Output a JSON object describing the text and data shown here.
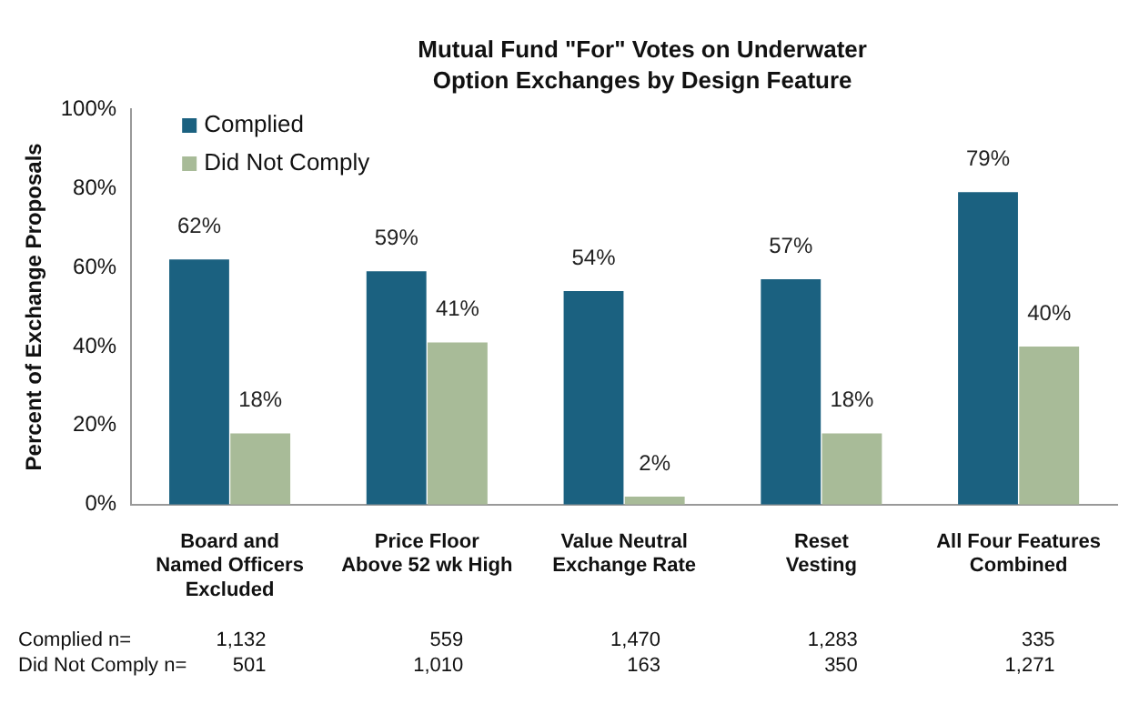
{
  "chart_data": {
    "type": "bar",
    "title": "Mutual Fund \"For\" Votes on Underwater\nOption Exchanges by Design Feature",
    "ylabel": "Percent of Exchange Proposals",
    "categories": [
      "Board and\nNamed Officers\nExcluded",
      "Price Floor\nAbove 52 wk High",
      "Value Neutral\nExchange Rate",
      "Reset\nVesting",
      "All Four Features\nCombined"
    ],
    "series": [
      {
        "name": "Complied",
        "color": "#1b6180",
        "values": [
          62,
          59,
          54,
          57,
          79
        ],
        "value_labels": [
          "62%",
          "59%",
          "54%",
          "57%",
          "79%"
        ]
      },
      {
        "name": "Did Not Comply",
        "color": "#a8bb98",
        "values": [
          18,
          41,
          2,
          18,
          40
        ],
        "value_labels": [
          "18%",
          "41%",
          "2%",
          "18%",
          "40%"
        ]
      }
    ],
    "ylim": [
      0,
      100
    ],
    "yticks": [
      {
        "value": 0,
        "label": "0%"
      },
      {
        "value": 20,
        "label": "20%"
      },
      {
        "value": 40,
        "label": "40%"
      },
      {
        "value": 60,
        "label": "60%"
      },
      {
        "value": 80,
        "label": "80%"
      },
      {
        "value": 100,
        "label": "100%"
      }
    ],
    "grid": false,
    "legend": "top left",
    "annotations": [
      "Complied n=",
      "1,132",
      "559",
      "1,470",
      "1,283",
      "335",
      "Did Not Comply n=",
      "501",
      "1,010",
      "163",
      "350",
      "1,271"
    ]
  }
}
